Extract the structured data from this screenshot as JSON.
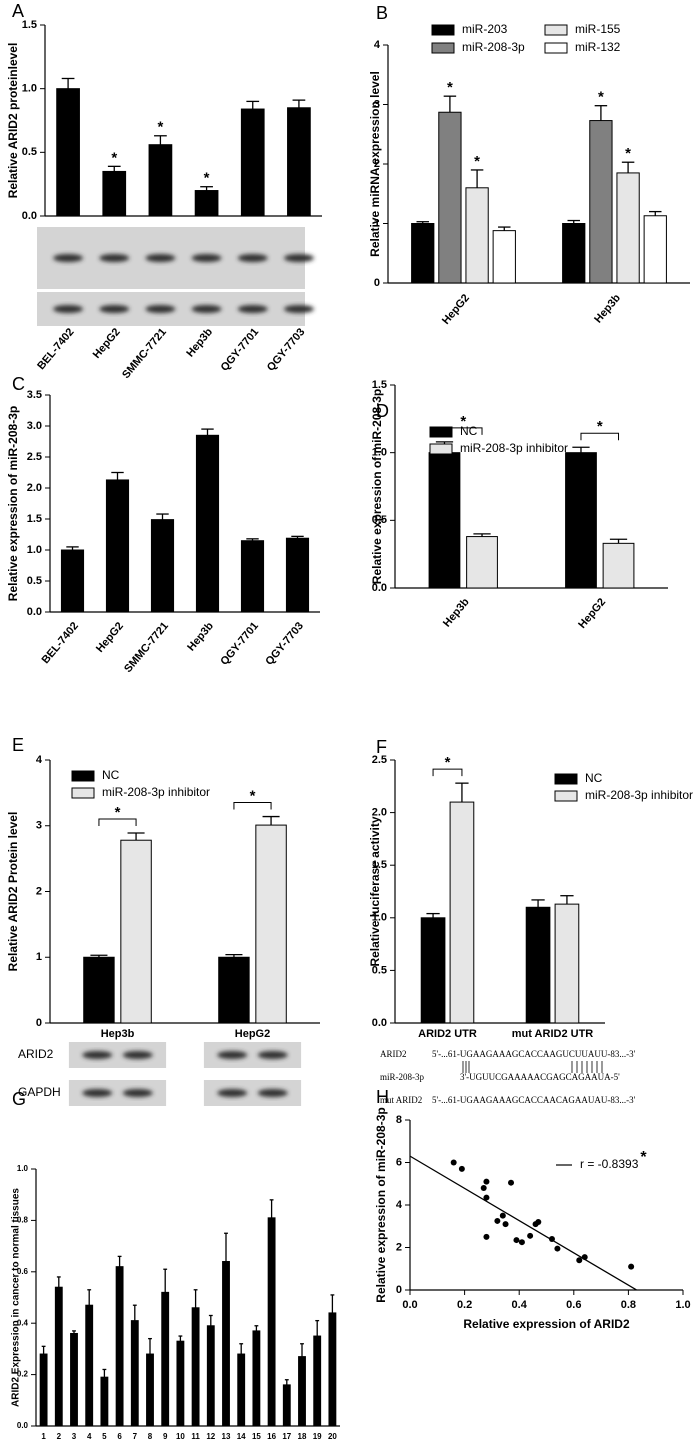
{
  "chart_data": [
    {
      "type": "bar",
      "panel": "A",
      "ylabel": "Relative ARID2 proteinlevel",
      "categories": [
        "BEL-7402",
        "HepG2",
        "SMMC-7721",
        "Hep3b",
        "QGY-7701",
        "QGY-7703"
      ],
      "values": [
        1.0,
        0.35,
        0.56,
        0.2,
        0.84,
        0.85
      ],
      "errors": [
        0.08,
        0.04,
        0.07,
        0.03,
        0.06,
        0.06
      ],
      "sig": [
        null,
        "*",
        "*",
        "*",
        null,
        null
      ],
      "color": "#000000",
      "ylim": [
        0,
        1.5
      ],
      "yticks": [
        {
          "value": 0,
          "label": "0.0"
        },
        0.5,
        {
          "value": 1,
          "label": "1.0"
        },
        1.5
      ]
    },
    {
      "type": "bar",
      "panel": "B",
      "ylabel": "Relative miRNA expression level",
      "categories": [
        "HepG2",
        "Hep3b"
      ],
      "series": [
        {
          "name": "miR-203",
          "color": "#000000",
          "values": [
            1.0,
            1.0
          ],
          "errors": [
            0.03,
            0.05
          ]
        },
        {
          "name": "miR-208-3p",
          "color": "#808080",
          "values": [
            2.87,
            2.73
          ],
          "errors": [
            0.27,
            0.25
          ],
          "sig": [
            "*",
            "*"
          ]
        },
        {
          "name": "miR-155",
          "color": "#e6e6e6",
          "values": [
            1.6,
            1.85
          ],
          "errors": [
            0.3,
            0.18
          ],
          "sig": [
            "*",
            "*"
          ]
        },
        {
          "name": "miR-132",
          "color": "#ffffff",
          "values": [
            0.88,
            1.13
          ],
          "errors": [
            0.06,
            0.07
          ]
        }
      ],
      "ylim": [
        0,
        4
      ],
      "yticks": [
        0,
        1,
        2,
        3,
        4
      ]
    },
    {
      "type": "bar",
      "panel": "C",
      "ylabel": "Relative expression of miR-208-3p",
      "categories": [
        "BEL-7402",
        "HepG2",
        "SMMC-7721",
        "Hep3b",
        "QGY-7701",
        "QGY-7703"
      ],
      "values": [
        1.0,
        2.13,
        1.49,
        2.85,
        1.15,
        1.19
      ],
      "errors": [
        0.05,
        0.12,
        0.09,
        0.1,
        0.03,
        0.03
      ],
      "color": "#000000",
      "ylim": [
        0,
        3.5
      ],
      "yticks": [
        {
          "value": 0,
          "label": "0.0"
        },
        0.5,
        {
          "value": 1,
          "label": "1.0"
        },
        1.5,
        {
          "value": 2,
          "label": "2.0"
        },
        2.5,
        {
          "value": 3,
          "label": "3.0"
        },
        3.5
      ]
    },
    {
      "type": "bar",
      "panel": "D",
      "ylabel": "Relative expression of miR-208-3p",
      "categories": [
        "Hep3b",
        "HepG2"
      ],
      "series": [
        {
          "name": "NC",
          "color": "#000000",
          "values": [
            1.0,
            1.0
          ],
          "errors": [
            0.08,
            0.04
          ]
        },
        {
          "name": "miR-208-3p inhibitor",
          "color": "#e6e6e6",
          "values": [
            0.38,
            0.33
          ],
          "errors": [
            0.02,
            0.03
          ]
        }
      ],
      "sig": [
        "*",
        "*"
      ],
      "ylim": [
        0,
        1.5
      ],
      "yticks": [
        {
          "value": 0,
          "label": "0.0"
        },
        0.5,
        {
          "value": 1,
          "label": "1.0"
        },
        1.5
      ]
    },
    {
      "type": "bar",
      "panel": "E",
      "ylabel": "Relative ARID2 Protein level",
      "categories": [
        "Hep3b",
        "HepG2"
      ],
      "series": [
        {
          "name": "NC",
          "color": "#000000",
          "values": [
            1.0,
            1.0
          ],
          "errors": [
            0.03,
            0.04
          ]
        },
        {
          "name": "miR-208-3p inhibitor",
          "color": "#e6e6e6",
          "values": [
            2.78,
            3.01
          ],
          "errors": [
            0.11,
            0.13
          ]
        }
      ],
      "sig": [
        "*",
        "*"
      ],
      "blot_labels": [
        "ARID2",
        "GAPDH"
      ],
      "ylim": [
        0,
        4
      ],
      "yticks": [
        0,
        1,
        2,
        3,
        4
      ]
    },
    {
      "type": "bar",
      "panel": "F",
      "ylabel": "Relative luciferase activity",
      "categories": [
        "ARID2 UTR",
        "mut ARID2 UTR"
      ],
      "series": [
        {
          "name": "NC",
          "color": "#000000",
          "values": [
            1.0,
            1.1
          ],
          "errors": [
            0.04,
            0.07
          ]
        },
        {
          "name": "miR-208-3p inhibitor",
          "color": "#e6e6e6",
          "values": [
            2.1,
            1.13
          ],
          "errors": [
            0.18,
            0.08
          ]
        }
      ],
      "sig": [
        "*",
        null
      ],
      "sequences": [
        {
          "label": "ARID2",
          "seq": "5'-...61-UGAAGAAAGCACCAAGUCUUAUU-83...-3'"
        },
        {
          "label": "miR-208-3p",
          "seq": "3'-UGUUCGAAAAACGAGCAGAAUA-5'"
        },
        {
          "label": "mut ARID2",
          "seq": "5'-...61-UGAAGAAAGCACCAACAGAAUAU-83...-3'"
        }
      ],
      "ylim": [
        0,
        2.5
      ],
      "yticks": [
        {
          "value": 0,
          "label": "0.0"
        },
        0.5,
        {
          "value": 1,
          "label": "1.0"
        },
        1.5,
        {
          "value": 2,
          "label": "2.0"
        },
        2.5
      ]
    },
    {
      "type": "bar",
      "panel": "G",
      "ylabel": "ARID2 Expression in cancer to normal tissues",
      "categories": [
        "1",
        "2",
        "3",
        "4",
        "5",
        "6",
        "7",
        "8",
        "9",
        "10",
        "11",
        "12",
        "13",
        "14",
        "15",
        "16",
        "17",
        "18",
        "19",
        "20"
      ],
      "values": [
        0.28,
        0.54,
        0.36,
        0.47,
        0.19,
        0.62,
        0.41,
        0.28,
        0.52,
        0.33,
        0.46,
        0.39,
        0.64,
        0.28,
        0.37,
        0.81,
        0.16,
        0.27,
        0.35,
        0.44
      ],
      "errors": [
        0.03,
        0.04,
        0.01,
        0.06,
        0.03,
        0.04,
        0.06,
        0.06,
        0.09,
        0.02,
        0.07,
        0.04,
        0.11,
        0.04,
        0.02,
        0.07,
        0.02,
        0.05,
        0.06,
        0.07
      ],
      "color": "#000000",
      "ylim": [
        0,
        1
      ],
      "yticks": [
        {
          "value": 0,
          "label": "0.0"
        },
        0.2,
        0.4,
        0.6,
        0.8,
        {
          "value": 1,
          "label": "1.0"
        }
      ]
    },
    {
      "type": "scatter",
      "panel": "H",
      "ylabel": "Relative expression of miR-208-3p",
      "xlabel": "Relative expression of ARID2",
      "x": [
        0.16,
        0.19,
        0.27,
        0.28,
        0.28,
        0.28,
        0.32,
        0.34,
        0.35,
        0.37,
        0.39,
        0.41,
        0.44,
        0.46,
        0.47,
        0.52,
        0.54,
        0.62,
        0.64,
        0.81
      ],
      "values": [
        6.0,
        5.7,
        4.8,
        5.1,
        4.35,
        2.5,
        3.25,
        3.5,
        3.1,
        5.05,
        2.35,
        2.25,
        2.55,
        3.1,
        3.2,
        2.4,
        1.95,
        1.4,
        1.55,
        1.1
      ],
      "color": "#000000",
      "fit": {
        "x": [
          0,
          0.83
        ],
        "values": [
          6.3,
          0
        ]
      },
      "annotation": "r = -0.8393",
      "annotation_mark": "*",
      "xlim": [
        0,
        1
      ],
      "xticks": [
        {
          "value": 0,
          "label": "0.0"
        },
        0.2,
        0.4,
        0.6,
        0.8,
        {
          "value": 1,
          "label": "1.0"
        }
      ],
      "ylim": [
        0,
        8
      ],
      "yticks": [
        0,
        2,
        4,
        6,
        8
      ]
    }
  ]
}
